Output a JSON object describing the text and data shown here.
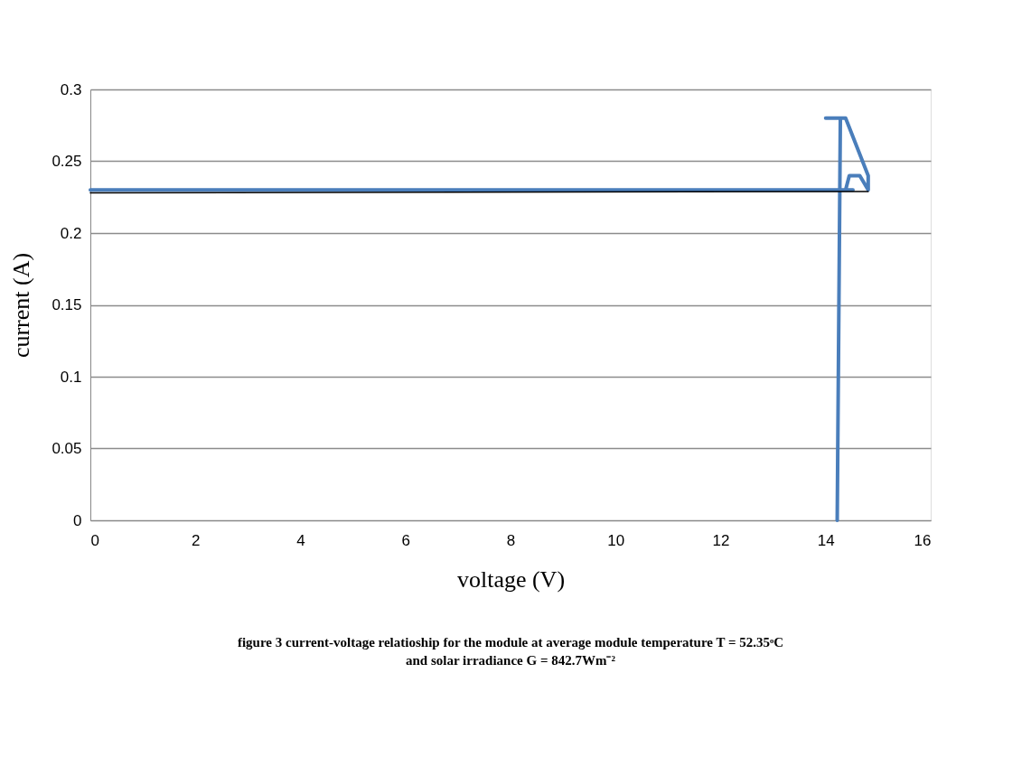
{
  "chart_data": {
    "type": "line",
    "xlabel": "voltage (V)",
    "ylabel": "current (A)",
    "xlim": [
      0,
      16
    ],
    "xticks": [
      0,
      2,
      4,
      6,
      8,
      10,
      12,
      14,
      16
    ],
    "ylim": [
      0,
      0.3
    ],
    "yticks": [
      0,
      0.05,
      0.1,
      0.15,
      0.2,
      0.25,
      0.3
    ],
    "grid": "y",
    "marker": "none",
    "line_style": "solid",
    "series": [
      {
        "color": "#4a7ebb",
        "x": [
          0,
          14.52,
          14.38,
          14.45,
          14.65,
          14.81,
          14.81,
          14.38,
          14.0,
          14.28,
          14.22
        ],
        "values": [
          0.23,
          0.23,
          0.23,
          0.24,
          0.24,
          0.23,
          0.24,
          0.28,
          0.28,
          0.28,
          0
        ]
      },
      {
        "type": "line",
        "color": "#000000",
        "x": [
          0,
          14.81
        ],
        "values": [
          0.228,
          0.229
        ]
      }
    ],
    "annotations": [
      "figure 3 current-voltage relatioship for the module at average module temperature T = 52.35ᵒC",
      "and solar irradiance G = 842.7Wm⁻²"
    ]
  }
}
